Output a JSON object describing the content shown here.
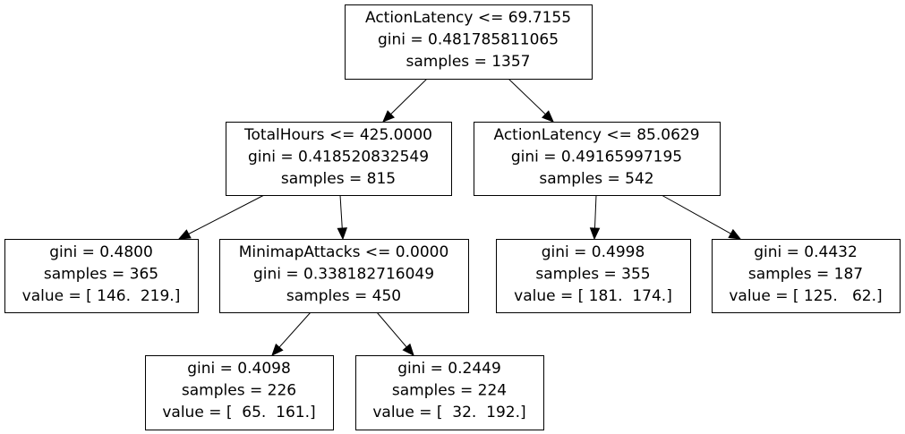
{
  "nodes": [
    {
      "id": "n0",
      "lines": [
        "ActionLatency <= 69.7155",
        "gini = 0.481785811065",
        "samples = 1357"
      ]
    },
    {
      "id": "n1",
      "lines": [
        "TotalHours <= 425.0000",
        "gini = 0.418520832549",
        "samples = 815"
      ]
    },
    {
      "id": "n2",
      "lines": [
        "ActionLatency <= 85.0629",
        "gini = 0.49165997195",
        "samples = 542"
      ]
    },
    {
      "id": "n3",
      "lines": [
        "gini = 0.4800",
        "samples = 365",
        "value = [ 146.  219.]"
      ]
    },
    {
      "id": "n4",
      "lines": [
        "MinimapAttacks <= 0.0000",
        "gini = 0.338182716049",
        "samples = 450"
      ]
    },
    {
      "id": "n5",
      "lines": [
        "gini = 0.4998",
        "samples = 355",
        "value = [ 181.  174.]"
      ]
    },
    {
      "id": "n6",
      "lines": [
        "gini = 0.4432",
        "samples = 187",
        "value = [ 125.   62.]"
      ]
    },
    {
      "id": "n7",
      "lines": [
        "gini = 0.4098",
        "samples = 226",
        "value = [  65.  161.]"
      ]
    },
    {
      "id": "n8",
      "lines": [
        "gini = 0.2449",
        "samples = 224",
        "value = [  32.  192.]"
      ]
    }
  ],
  "edges": [
    {
      "from": "n0",
      "to": "n1"
    },
    {
      "from": "n0",
      "to": "n2"
    },
    {
      "from": "n1",
      "to": "n3"
    },
    {
      "from": "n1",
      "to": "n4"
    },
    {
      "from": "n2",
      "to": "n5"
    },
    {
      "from": "n2",
      "to": "n6"
    },
    {
      "from": "n4",
      "to": "n7"
    },
    {
      "from": "n4",
      "to": "n8"
    }
  ]
}
